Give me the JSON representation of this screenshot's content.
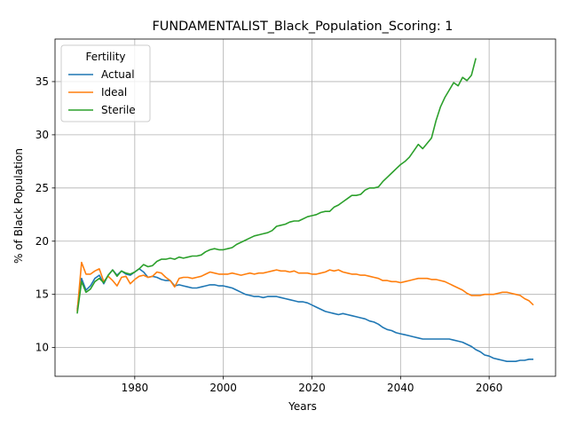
{
  "chart_data": {
    "type": "line",
    "title": "FUNDAMENTALIST_Black_Population_Scoring: 1",
    "xlabel": "Years",
    "ylabel": "% of Black Population",
    "xlim": [
      1962,
      2075
    ],
    "ylim": [
      7.3,
      39.0
    ],
    "xticks": [
      1980,
      2000,
      2020,
      2040,
      2060
    ],
    "yticks": [
      10,
      15,
      20,
      25,
      30,
      35
    ],
    "grid": true,
    "legend": {
      "title": "Fertility",
      "position": "top-left"
    },
    "series": [
      {
        "name": "Actual",
        "color": "#1f77b4",
        "points": [
          [
            1967,
            13.6
          ],
          [
            1968,
            16.5
          ],
          [
            1969,
            15.4
          ],
          [
            1970,
            15.8
          ],
          [
            1971,
            16.5
          ],
          [
            1972,
            16.8
          ],
          [
            1973,
            16.0
          ],
          [
            1974,
            16.8
          ],
          [
            1975,
            17.3
          ],
          [
            1976,
            16.8
          ],
          [
            1977,
            17.2
          ],
          [
            1978,
            16.9
          ],
          [
            1979,
            16.8
          ],
          [
            1980,
            17.1
          ],
          [
            1981,
            17.4
          ],
          [
            1982,
            17.1
          ],
          [
            1983,
            16.6
          ],
          [
            1984,
            16.7
          ],
          [
            1985,
            16.6
          ],
          [
            1986,
            16.4
          ],
          [
            1987,
            16.3
          ],
          [
            1988,
            16.3
          ],
          [
            1989,
            15.8
          ],
          [
            1990,
            15.9
          ],
          [
            1991,
            15.8
          ],
          [
            1992,
            15.7
          ],
          [
            1993,
            15.6
          ],
          [
            1994,
            15.6
          ],
          [
            1995,
            15.7
          ],
          [
            1996,
            15.8
          ],
          [
            1997,
            15.9
          ],
          [
            1998,
            15.9
          ],
          [
            1999,
            15.8
          ],
          [
            2000,
            15.8
          ],
          [
            2001,
            15.7
          ],
          [
            2002,
            15.6
          ],
          [
            2003,
            15.4
          ],
          [
            2004,
            15.2
          ],
          [
            2005,
            15.0
          ],
          [
            2006,
            14.9
          ],
          [
            2007,
            14.8
          ],
          [
            2008,
            14.8
          ],
          [
            2009,
            14.7
          ],
          [
            2010,
            14.8
          ],
          [
            2011,
            14.8
          ],
          [
            2012,
            14.8
          ],
          [
            2013,
            14.7
          ],
          [
            2014,
            14.6
          ],
          [
            2015,
            14.5
          ],
          [
            2016,
            14.4
          ],
          [
            2017,
            14.3
          ],
          [
            2018,
            14.3
          ],
          [
            2019,
            14.2
          ],
          [
            2020,
            14.0
          ],
          [
            2021,
            13.8
          ],
          [
            2022,
            13.6
          ],
          [
            2023,
            13.4
          ],
          [
            2024,
            13.3
          ],
          [
            2025,
            13.2
          ],
          [
            2026,
            13.1
          ],
          [
            2027,
            13.2
          ],
          [
            2028,
            13.1
          ],
          [
            2029,
            13.0
          ],
          [
            2030,
            12.9
          ],
          [
            2031,
            12.8
          ],
          [
            2032,
            12.7
          ],
          [
            2033,
            12.5
          ],
          [
            2034,
            12.4
          ],
          [
            2035,
            12.2
          ],
          [
            2036,
            11.9
          ],
          [
            2037,
            11.7
          ],
          [
            2038,
            11.6
          ],
          [
            2039,
            11.4
          ],
          [
            2040,
            11.3
          ],
          [
            2041,
            11.2
          ],
          [
            2042,
            11.1
          ],
          [
            2043,
            11.0
          ],
          [
            2044,
            10.9
          ],
          [
            2045,
            10.8
          ],
          [
            2046,
            10.8
          ],
          [
            2047,
            10.8
          ],
          [
            2048,
            10.8
          ],
          [
            2049,
            10.8
          ],
          [
            2050,
            10.8
          ],
          [
            2051,
            10.8
          ],
          [
            2052,
            10.7
          ],
          [
            2053,
            10.6
          ],
          [
            2054,
            10.5
          ],
          [
            2055,
            10.3
          ],
          [
            2056,
            10.1
          ],
          [
            2057,
            9.8
          ],
          [
            2058,
            9.6
          ],
          [
            2059,
            9.3
          ],
          [
            2060,
            9.2
          ],
          [
            2061,
            9.0
          ],
          [
            2062,
            8.9
          ],
          [
            2063,
            8.8
          ],
          [
            2064,
            8.7
          ],
          [
            2065,
            8.7
          ],
          [
            2066,
            8.7
          ],
          [
            2067,
            8.8
          ],
          [
            2068,
            8.8
          ],
          [
            2069,
            8.9
          ],
          [
            2070,
            8.9
          ]
        ]
      },
      {
        "name": "Ideal",
        "color": "#ff7f0e",
        "points": [
          [
            1967,
            13.4
          ],
          [
            1968,
            18.0
          ],
          [
            1969,
            16.9
          ],
          [
            1970,
            16.9
          ],
          [
            1971,
            17.2
          ],
          [
            1972,
            17.4
          ],
          [
            1973,
            16.2
          ],
          [
            1974,
            16.7
          ],
          [
            1975,
            16.3
          ],
          [
            1976,
            15.8
          ],
          [
            1977,
            16.6
          ],
          [
            1978,
            16.7
          ],
          [
            1979,
            16.0
          ],
          [
            1980,
            16.4
          ],
          [
            1981,
            16.7
          ],
          [
            1982,
            16.8
          ],
          [
            1983,
            16.6
          ],
          [
            1984,
            16.7
          ],
          [
            1985,
            17.1
          ],
          [
            1986,
            17.0
          ],
          [
            1987,
            16.6
          ],
          [
            1988,
            16.3
          ],
          [
            1989,
            15.7
          ],
          [
            1990,
            16.5
          ],
          [
            1991,
            16.6
          ],
          [
            1992,
            16.6
          ],
          [
            1993,
            16.5
          ],
          [
            1994,
            16.6
          ],
          [
            1995,
            16.7
          ],
          [
            1996,
            16.9
          ],
          [
            1997,
            17.1
          ],
          [
            1998,
            17.0
          ],
          [
            1999,
            16.9
          ],
          [
            2000,
            16.9
          ],
          [
            2001,
            16.9
          ],
          [
            2002,
            17.0
          ],
          [
            2003,
            16.9
          ],
          [
            2004,
            16.8
          ],
          [
            2005,
            16.9
          ],
          [
            2006,
            17.0
          ],
          [
            2007,
            16.9
          ],
          [
            2008,
            17.0
          ],
          [
            2009,
            17.0
          ],
          [
            2010,
            17.1
          ],
          [
            2011,
            17.2
          ],
          [
            2012,
            17.3
          ],
          [
            2013,
            17.2
          ],
          [
            2014,
            17.2
          ],
          [
            2015,
            17.1
          ],
          [
            2016,
            17.2
          ],
          [
            2017,
            17.0
          ],
          [
            2018,
            17.0
          ],
          [
            2019,
            17.0
          ],
          [
            2020,
            16.9
          ],
          [
            2021,
            16.9
          ],
          [
            2022,
            17.0
          ],
          [
            2023,
            17.1
          ],
          [
            2024,
            17.3
          ],
          [
            2025,
            17.2
          ],
          [
            2026,
            17.3
          ],
          [
            2027,
            17.1
          ],
          [
            2028,
            17.0
          ],
          [
            2029,
            16.9
          ],
          [
            2030,
            16.9
          ],
          [
            2031,
            16.8
          ],
          [
            2032,
            16.8
          ],
          [
            2033,
            16.7
          ],
          [
            2034,
            16.6
          ],
          [
            2035,
            16.5
          ],
          [
            2036,
            16.3
          ],
          [
            2037,
            16.3
          ],
          [
            2038,
            16.2
          ],
          [
            2039,
            16.2
          ],
          [
            2040,
            16.1
          ],
          [
            2041,
            16.2
          ],
          [
            2042,
            16.3
          ],
          [
            2043,
            16.4
          ],
          [
            2044,
            16.5
          ],
          [
            2045,
            16.5
          ],
          [
            2046,
            16.5
          ],
          [
            2047,
            16.4
          ],
          [
            2048,
            16.4
          ],
          [
            2049,
            16.3
          ],
          [
            2050,
            16.2
          ],
          [
            2051,
            16.0
          ],
          [
            2052,
            15.8
          ],
          [
            2053,
            15.6
          ],
          [
            2054,
            15.4
          ],
          [
            2055,
            15.1
          ],
          [
            2056,
            14.9
          ],
          [
            2057,
            14.9
          ],
          [
            2058,
            14.9
          ],
          [
            2059,
            15.0
          ],
          [
            2060,
            15.0
          ],
          [
            2061,
            15.0
          ],
          [
            2062,
            15.1
          ],
          [
            2063,
            15.2
          ],
          [
            2064,
            15.2
          ],
          [
            2065,
            15.1
          ],
          [
            2066,
            15.0
          ],
          [
            2067,
            14.9
          ],
          [
            2068,
            14.6
          ],
          [
            2069,
            14.4
          ],
          [
            2070,
            14.0
          ]
        ]
      },
      {
        "name": "Sterile",
        "color": "#2ca02c",
        "points": [
          [
            1967,
            13.2
          ],
          [
            1968,
            16.2
          ],
          [
            1969,
            15.2
          ],
          [
            1970,
            15.5
          ],
          [
            1971,
            16.2
          ],
          [
            1972,
            16.5
          ],
          [
            1973,
            16.1
          ],
          [
            1974,
            16.8
          ],
          [
            1975,
            17.3
          ],
          [
            1976,
            16.7
          ],
          [
            1977,
            17.2
          ],
          [
            1978,
            17.0
          ],
          [
            1979,
            16.9
          ],
          [
            1980,
            17.1
          ],
          [
            1981,
            17.4
          ],
          [
            1982,
            17.8
          ],
          [
            1983,
            17.6
          ],
          [
            1984,
            17.7
          ],
          [
            1985,
            18.1
          ],
          [
            1986,
            18.3
          ],
          [
            1987,
            18.3
          ],
          [
            1988,
            18.4
          ],
          [
            1989,
            18.3
          ],
          [
            1990,
            18.5
          ],
          [
            1991,
            18.4
          ],
          [
            1992,
            18.5
          ],
          [
            1993,
            18.6
          ],
          [
            1994,
            18.6
          ],
          [
            1995,
            18.7
          ],
          [
            1996,
            19.0
          ],
          [
            1997,
            19.2
          ],
          [
            1998,
            19.3
          ],
          [
            1999,
            19.2
          ],
          [
            2000,
            19.2
          ],
          [
            2001,
            19.3
          ],
          [
            2002,
            19.4
          ],
          [
            2003,
            19.7
          ],
          [
            2004,
            19.9
          ],
          [
            2005,
            20.1
          ],
          [
            2006,
            20.3
          ],
          [
            2007,
            20.5
          ],
          [
            2008,
            20.6
          ],
          [
            2009,
            20.7
          ],
          [
            2010,
            20.8
          ],
          [
            2011,
            21.0
          ],
          [
            2012,
            21.4
          ],
          [
            2013,
            21.5
          ],
          [
            2014,
            21.6
          ],
          [
            2015,
            21.8
          ],
          [
            2016,
            21.9
          ],
          [
            2017,
            21.9
          ],
          [
            2018,
            22.1
          ],
          [
            2019,
            22.3
          ],
          [
            2020,
            22.4
          ],
          [
            2021,
            22.5
          ],
          [
            2022,
            22.7
          ],
          [
            2023,
            22.8
          ],
          [
            2024,
            22.8
          ],
          [
            2025,
            23.2
          ],
          [
            2026,
            23.4
          ],
          [
            2027,
            23.7
          ],
          [
            2028,
            24.0
          ],
          [
            2029,
            24.3
          ],
          [
            2030,
            24.3
          ],
          [
            2031,
            24.4
          ],
          [
            2032,
            24.8
          ],
          [
            2033,
            25.0
          ],
          [
            2034,
            25.0
          ],
          [
            2035,
            25.1
          ],
          [
            2036,
            25.6
          ],
          [
            2037,
            26.0
          ],
          [
            2038,
            26.4
          ],
          [
            2039,
            26.8
          ],
          [
            2040,
            27.2
          ],
          [
            2041,
            27.5
          ],
          [
            2042,
            27.9
          ],
          [
            2043,
            28.5
          ],
          [
            2044,
            29.1
          ],
          [
            2045,
            28.7
          ],
          [
            2046,
            29.2
          ],
          [
            2047,
            29.7
          ],
          [
            2048,
            31.3
          ],
          [
            2049,
            32.6
          ],
          [
            2050,
            33.5
          ],
          [
            2051,
            34.2
          ],
          [
            2052,
            34.9
          ],
          [
            2053,
            34.6
          ],
          [
            2054,
            35.4
          ],
          [
            2055,
            35.1
          ],
          [
            2056,
            35.6
          ],
          [
            2057,
            37.2
          ]
        ]
      }
    ]
  }
}
